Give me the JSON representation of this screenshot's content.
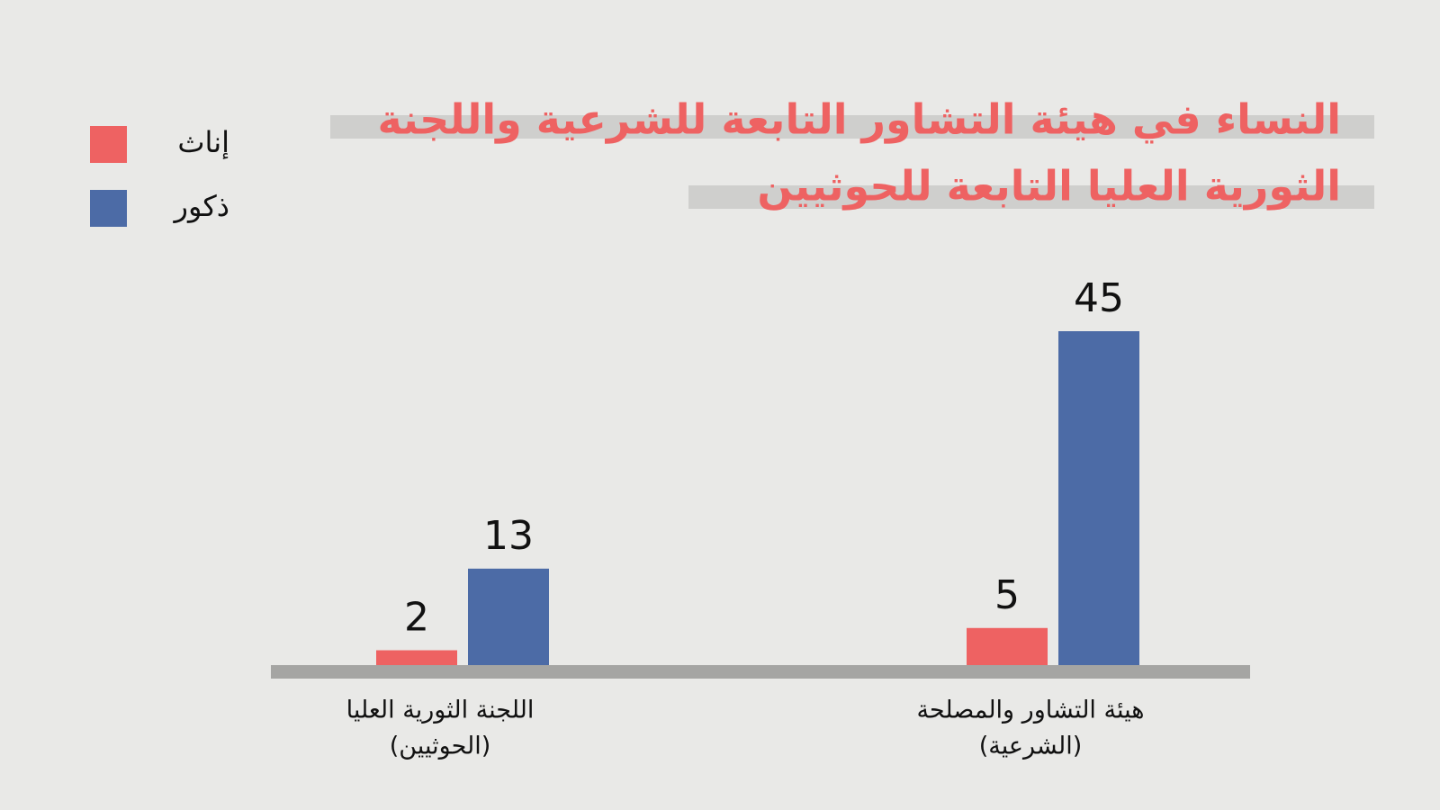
{
  "chart_data": {
    "type": "bar",
    "title": [
      "النساء في هيئة التشاور التابعة للشرعية واللجنة",
      "الثورية العليا التابعة للحوثيين"
    ],
    "categories": [
      [
        "هيئة التشاور والمصلحة",
        "(الشرعية)"
      ],
      [
        "اللجنة الثورية العليا",
        "(الحوثيين)"
      ]
    ],
    "series": [
      {
        "name": "إناث",
        "color": "#ee6262",
        "values": [
          5,
          2
        ]
      },
      {
        "name": "ذكور",
        "color": "#4c6ba6",
        "values": [
          45,
          13
        ]
      }
    ]
  }
}
